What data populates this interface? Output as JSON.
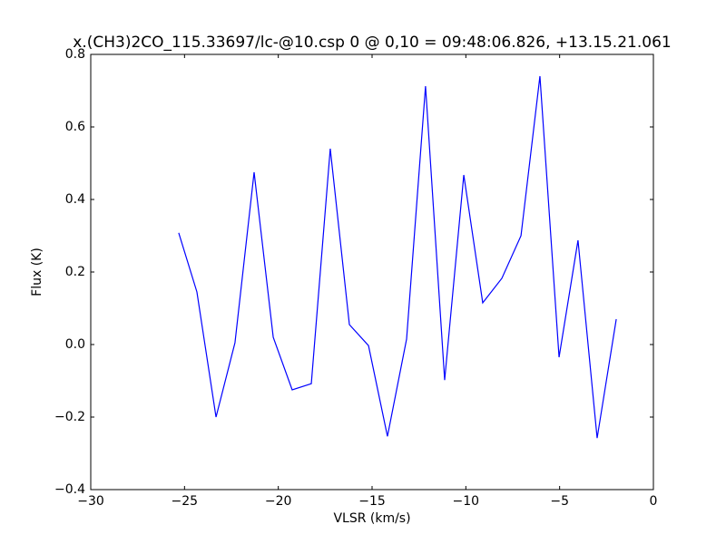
{
  "chart_data": {
    "type": "line",
    "title": "x.(CH3)2CO_115.33697/lc-@10.csp 0 @ 0,10 = 09:48:06.826, +13.15.21.061",
    "x_label": "VLSR (km/s)",
    "y_label": "Flux (K)",
    "x": [
      -25.31,
      -24.34,
      -23.32,
      -22.31,
      -21.29,
      -20.27,
      -19.26,
      -18.24,
      -17.23,
      -16.21,
      -15.19,
      -14.18,
      -13.16,
      -12.15,
      -11.13,
      -10.11,
      -9.1,
      -8.08,
      -7.06,
      -6.05,
      -5.03,
      -4.02,
      -3.0,
      -1.98
    ],
    "series": [
      {
        "color": "#0000ff",
        "values": [
          0.308,
          0.145,
          -0.2,
          0.005,
          0.475,
          0.02,
          -0.125,
          -0.108,
          0.54,
          0.055,
          -0.003,
          -0.253,
          0.015,
          0.7125,
          -0.098,
          0.4675,
          0.115,
          0.1825,
          0.3,
          0.74,
          -0.035,
          0.2875,
          -0.258,
          0.07
        ]
      }
    ],
    "xlim": [
      -30,
      0
    ],
    "xticks": [
      {
        "value": -30,
        "label": "−30"
      },
      {
        "value": -25,
        "label": "−25"
      },
      {
        "value": -20,
        "label": "−20"
      },
      {
        "value": -15,
        "label": "−15"
      },
      {
        "value": -10,
        "label": "−10"
      },
      {
        "value": -5,
        "label": "−5"
      },
      0
    ],
    "ylim": [
      -0.4,
      0.8
    ],
    "yticks": [
      {
        "value": -0.4,
        "label": "−0.4"
      },
      {
        "value": -0.2,
        "label": "−0.2"
      },
      {
        "value": 0,
        "label": "0.0"
      },
      0.2,
      0.4,
      0.6,
      0.8
    ],
    "grid": false
  }
}
